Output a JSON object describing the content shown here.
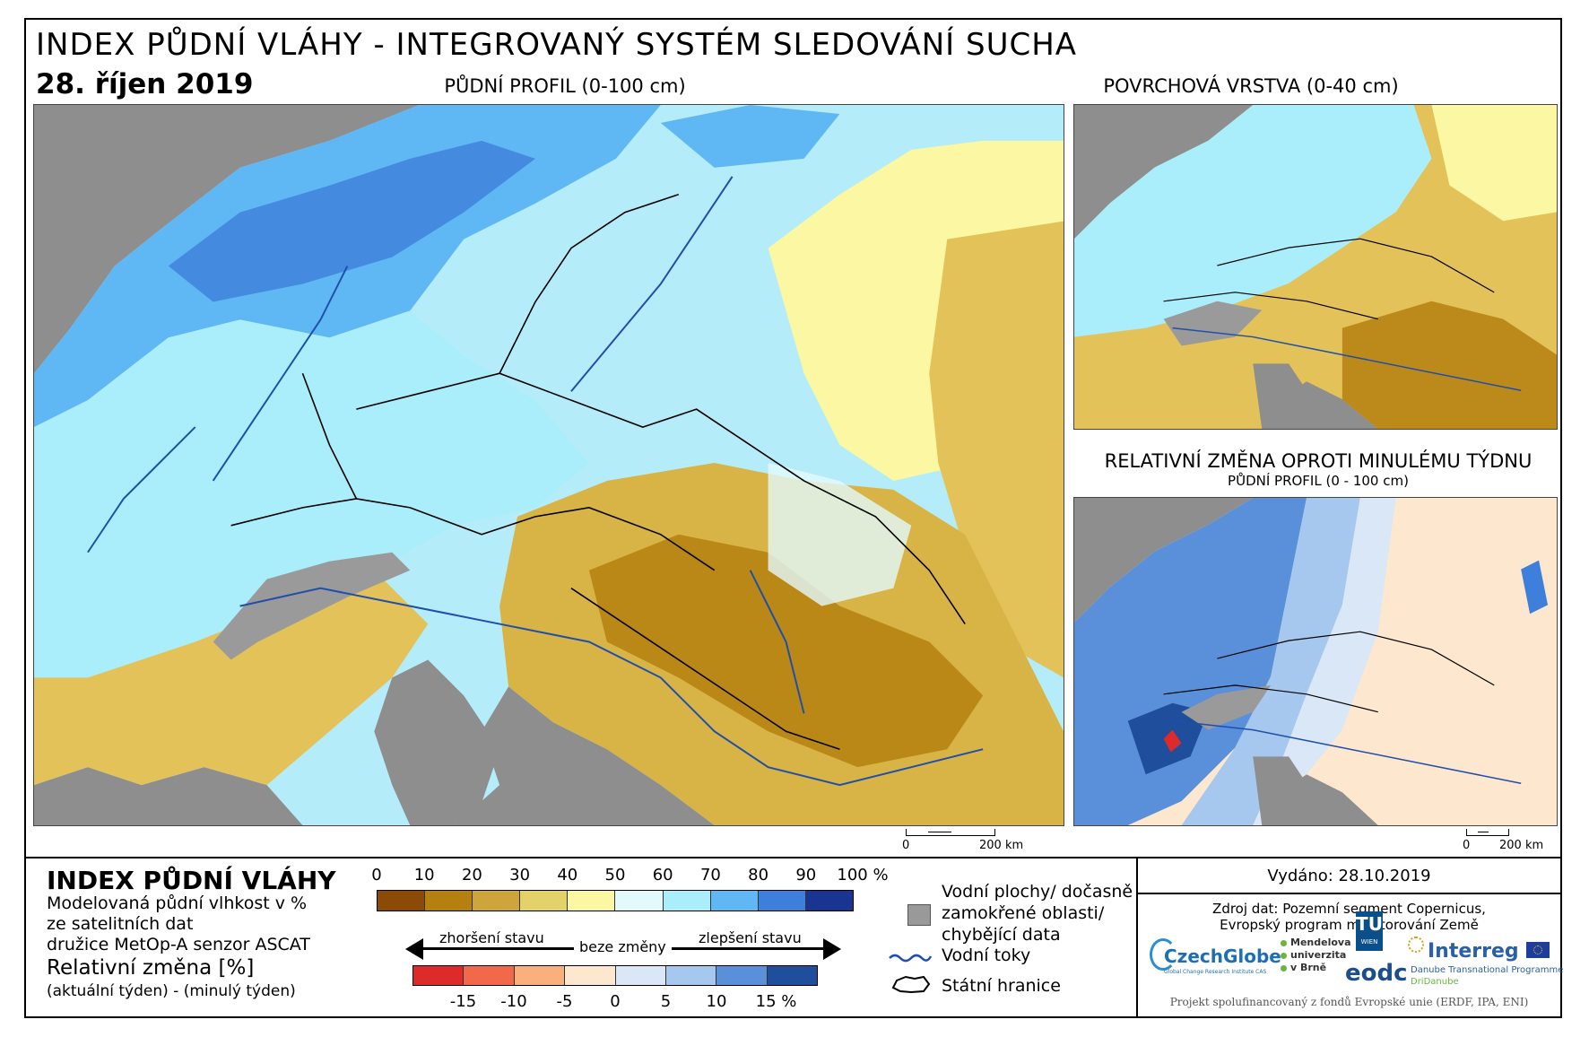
{
  "header": {
    "title": "INDEX PŮDNÍ VLÁHY - INTEGROVANÝ SYSTÉM SLEDOVÁNÍ SUCHA",
    "date": "28. říjen 2019"
  },
  "maps": {
    "main_caption": "PŮDNÍ PROFIL (0-100 cm)",
    "surface_caption": "POVRCHOVÁ VRSTVA (0-40 cm)",
    "change_caption": "RELATIVNÍ ZMĚNA OPROTI MINULÉMU TÝDNU",
    "change_subcaption": "PŮDNÍ PROFIL (0 - 100 cm)",
    "scale_zero": "0",
    "scale_label": "200 km"
  },
  "legend": {
    "title": "INDEX PŮDNÍ VLÁHY",
    "desc_1": "Modelovaná půdní vlhkost v %",
    "desc_2": "ze satelitních dat",
    "desc_3": "družice MetOp-A senzor ASCAT",
    "change_title": "Relativní změna [%]",
    "change_formula": "(aktuální týden) - (minulý týden)",
    "moisture_ticks": [
      "0",
      "10",
      "20",
      "30",
      "40",
      "50",
      "60",
      "70",
      "80",
      "90",
      "100 %"
    ],
    "moisture_colors": [
      "#8b4a06",
      "#b5800f",
      "#cda53a",
      "#e3d26a",
      "#fbf7a2",
      "#e3fafd",
      "#a9eefa",
      "#5fb8f3",
      "#3d7fda",
      "#1a3591"
    ],
    "worse_label": "zhoršení stavu",
    "same_label": "beze změny",
    "better_label": "zlepšení stavu",
    "change_ticks": [
      "-15",
      "-10",
      "-5",
      "0",
      "5",
      "10",
      "15 %"
    ],
    "change_colors": [
      "#dd2a2a",
      "#f2684a",
      "#f9b07c",
      "#fde8cf",
      "#d9e7f6",
      "#a6c8ee",
      "#5a8fd9",
      "#1f4f9c"
    ],
    "water_label_1": "Vodní plochy/ dočasně",
    "water_label_2": "zamokřené oblasti/",
    "water_label_3": "chybějící data",
    "rivers_label": "Vodní toky",
    "borders_label": "Státní hranice"
  },
  "info": {
    "issued": "Vydáno: 28.10.2019",
    "source_1": "Zdroj dat: Pozemní segment Copernicus,",
    "source_2": "Evropský program monitorování Země",
    "funding": "Projekt spolufinancovaný z fondů Evropské unie (ERDF, IPA, ENI)"
  },
  "logos": {
    "czechglobe": "CzechGlobe",
    "czechglobe_sub": "Global Change Research Institute CAS",
    "mendelu_1": "Mendelova",
    "mendelu_2": "univerzita",
    "mendelu_3": "v Brně",
    "tu": "TU",
    "tu_sub": "WIEN",
    "eodc": "eodc",
    "interreg": "Interreg",
    "interreg_sub": "Danube Transnational Programme",
    "interreg_sub2": "DriDanube"
  }
}
